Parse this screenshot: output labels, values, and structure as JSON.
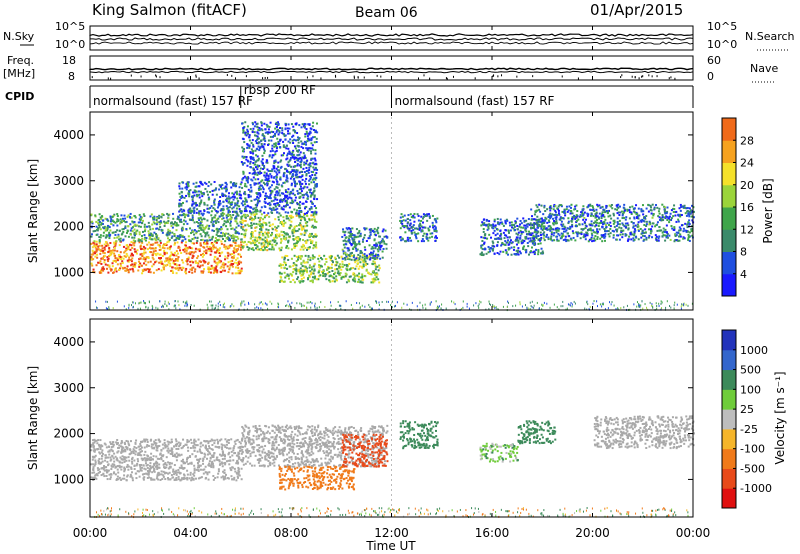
{
  "header": {
    "station": "King Salmon (fitACF)",
    "beam": "Beam 06",
    "date": "01/Apr/2015"
  },
  "noise_panel": {
    "left_label": "N.Sky",
    "right_label": "N.Search",
    "left_ticks": [
      "10^5",
      "10^0"
    ],
    "right_ticks": [
      "10^5",
      "10^0"
    ]
  },
  "freq_panel": {
    "left_label_1": "Freq.",
    "left_label_2": "[MHz]",
    "left_ticks": [
      "18",
      "8"
    ],
    "right_label": "Nave",
    "right_ticks": [
      "60",
      "0"
    ]
  },
  "cpid": {
    "label": "CPID",
    "segments": [
      {
        "text": "normalsound (fast) 157 RF",
        "start_hour": 0,
        "end_hour": 6.0
      },
      {
        "text": "rbsp 200 RF",
        "start_hour": 6.0,
        "end_hour": 12.0
      },
      {
        "text": "normalsound (fast) 157 RF",
        "start_hour": 12.0,
        "end_hour": 24.0
      }
    ]
  },
  "x_axis": {
    "label": "Time UT",
    "ticks": [
      "00:00",
      "04:00",
      "08:00",
      "12:00",
      "16:00",
      "20:00",
      "00:00"
    ],
    "range_hours": [
      0,
      24
    ]
  },
  "power_panel": {
    "ylabel": "Slant Range [km]",
    "yticks": [
      "1000",
      "2000",
      "3000",
      "4000"
    ],
    "colorbar_label": "Power [dB]",
    "colorbar_ticks": [
      "4",
      "8",
      "12",
      "16",
      "20",
      "24",
      "28"
    ]
  },
  "velocity_panel": {
    "ylabel": "Slant Range [km]",
    "yticks": [
      "1000",
      "2000",
      "3000",
      "4000"
    ],
    "colorbar_label": "Velocity [m s⁻¹]",
    "colorbar_ticks": [
      "1000",
      "500",
      "100",
      "25",
      "-25",
      "-100",
      "-500",
      "-1000"
    ]
  },
  "colors": {
    "power_scale": [
      "#1a1aff",
      "#1f4fe0",
      "#3a8a6a",
      "#3fa54a",
      "#9bd43a",
      "#f5e12a",
      "#f6a21f",
      "#f06a1a",
      "#e8231a",
      "#cf0000"
    ],
    "velocity_scale": [
      "#2233bb",
      "#3366cc",
      "#3c8a5a",
      "#6fcc3a",
      "#bdbdbd",
      "#f5b52a",
      "#f07a1a",
      "#e84a1a",
      "#e01010"
    ],
    "ground_scatter": "#a9a9a9"
  },
  "chart_data": {
    "type": "heatmap",
    "x_unit": "hours UT",
    "y_unit": "km",
    "ylim": [
      180,
      4500
    ],
    "xlim": [
      0,
      24
    ],
    "power_scatter_regions": [
      {
        "t_start": 0.0,
        "t_end": 6.0,
        "r_start": 1000,
        "r_end": 1700,
        "power_db": 22
      },
      {
        "t_start": 0.0,
        "t_end": 6.0,
        "r_start": 1700,
        "r_end": 2300,
        "power_db": 10
      },
      {
        "t_start": 3.5,
        "t_end": 6.0,
        "r_start": 2300,
        "r_end": 3000,
        "power_db": 6
      },
      {
        "t_start": 6.0,
        "t_end": 9.0,
        "r_start": 1500,
        "r_end": 2300,
        "power_db": 14
      },
      {
        "t_start": 6.0,
        "t_end": 9.0,
        "r_start": 2300,
        "r_end": 4300,
        "power_db": 5
      },
      {
        "t_start": 7.5,
        "t_end": 11.5,
        "r_start": 800,
        "r_end": 1400,
        "power_db": 13
      },
      {
        "t_start": 10.0,
        "t_end": 11.8,
        "r_start": 1300,
        "r_end": 2000,
        "power_db": 7
      },
      {
        "t_start": 12.3,
        "t_end": 13.8,
        "r_start": 1700,
        "r_end": 2300,
        "power_db": 6
      },
      {
        "t_start": 15.5,
        "t_end": 18.0,
        "r_start": 1400,
        "r_end": 2200,
        "power_db": 6
      },
      {
        "t_start": 17.5,
        "t_end": 24.0,
        "r_start": 1700,
        "r_end": 2500,
        "power_db": 7
      }
    ],
    "velocity_scatter_regions": [
      {
        "t_start": 0.0,
        "t_end": 6.0,
        "r_start": 1000,
        "r_end": 1900,
        "velocity": 0
      },
      {
        "t_start": 6.0,
        "t_end": 11.8,
        "r_start": 1300,
        "r_end": 2200,
        "velocity": 0
      },
      {
        "t_start": 7.5,
        "t_end": 10.5,
        "r_start": 800,
        "r_end": 1300,
        "velocity": -300
      },
      {
        "t_start": 10.0,
        "t_end": 11.8,
        "r_start": 1300,
        "r_end": 2000,
        "velocity": -700
      },
      {
        "t_start": 12.3,
        "t_end": 13.8,
        "r_start": 1700,
        "r_end": 2300,
        "velocity": 200
      },
      {
        "t_start": 15.5,
        "t_end": 17.0,
        "r_start": 1400,
        "r_end": 1800,
        "velocity": 60
      },
      {
        "t_start": 17.0,
        "t_end": 18.5,
        "r_start": 1800,
        "r_end": 2300,
        "velocity": 400
      },
      {
        "t_start": 20.0,
        "t_end": 24.0,
        "r_start": 1700,
        "r_end": 2400,
        "velocity": 0
      }
    ]
  }
}
